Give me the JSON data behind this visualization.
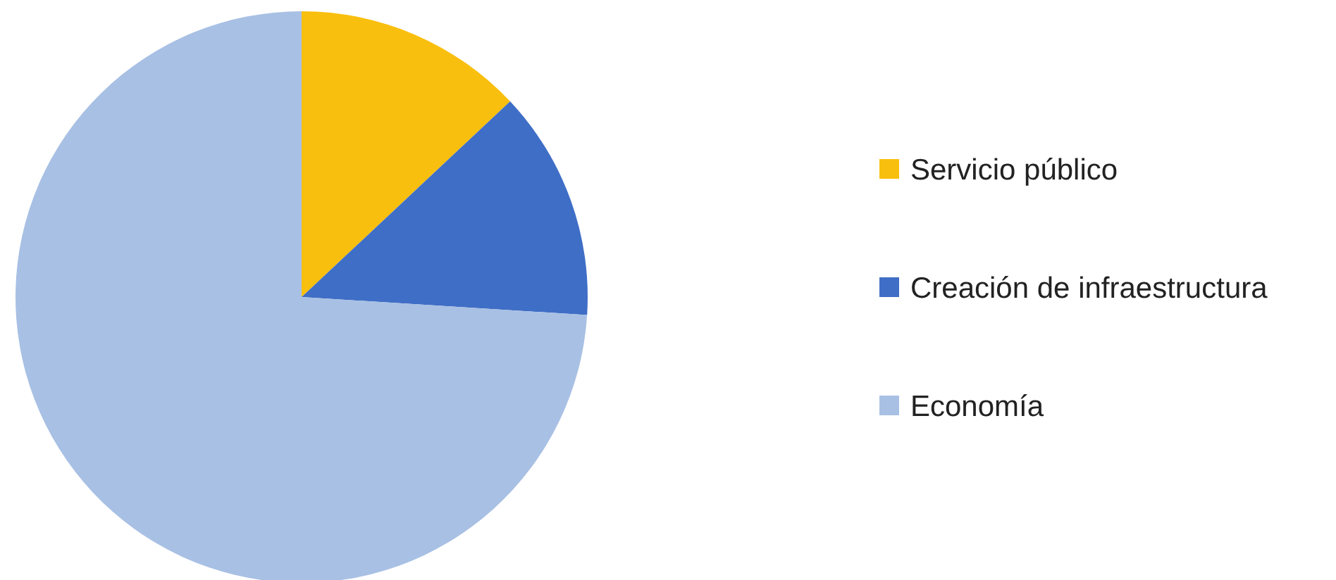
{
  "chart_data": {
    "type": "pie",
    "categories": [
      "Servicio público",
      "Creación de infraestructura",
      "Economía"
    ],
    "values": [
      13,
      13,
      74
    ],
    "colors": [
      "#f9bf0f",
      "#3f6ec6",
      "#a8c0e4"
    ],
    "legend": "right"
  }
}
